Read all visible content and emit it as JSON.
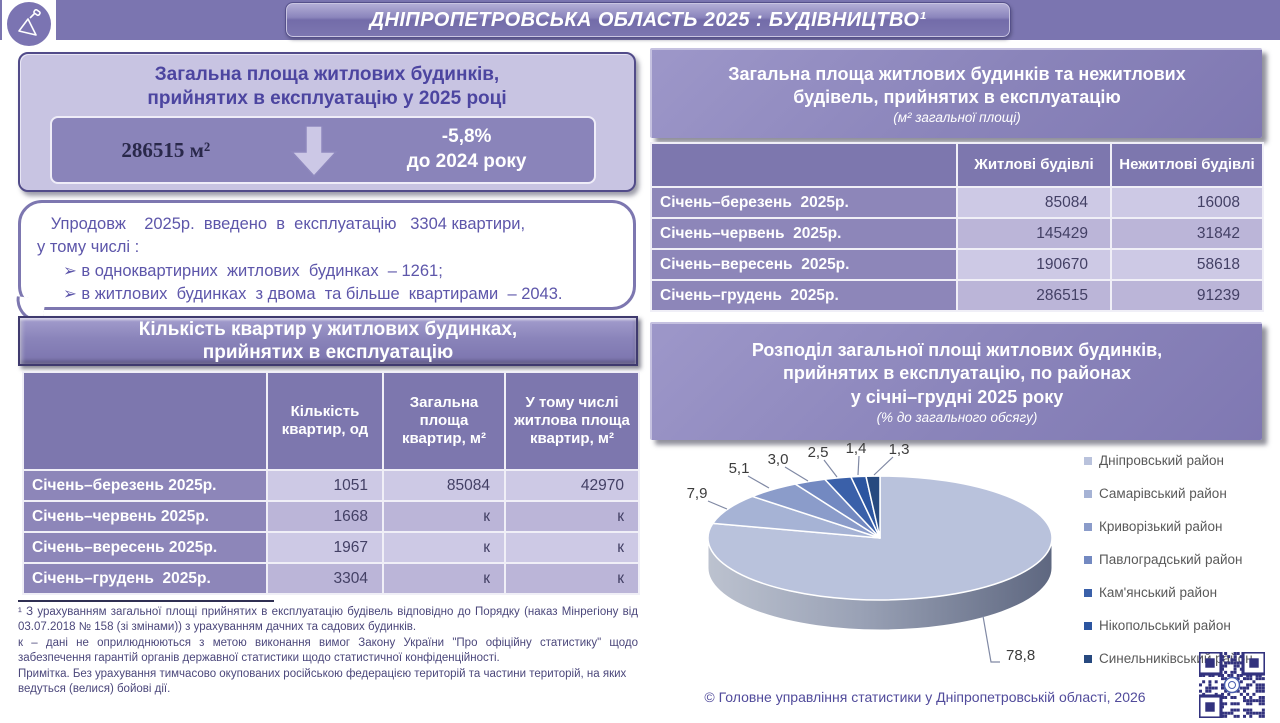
{
  "header": {
    "title": "ДНІПРОПЕТРОВСЬКА ОБЛАСТЬ 2025 : БУДІВНИЦТВО¹",
    "logo_icon": "trowel-icon"
  },
  "left": {
    "summary_box": {
      "title_line1": "Загальна площа житлових будинків,",
      "title_line2": "прийнятих в експлуатацію у 2025 році",
      "value": "286515 м²",
      "change_line1": "-5,8%",
      "change_line2": "до 2024 року"
    },
    "note_box": {
      "line1": "   Упродовж    2025р.  введено  в  експлуатацію   3304 квартири,",
      "line2": "у тому числі :",
      "bullet1": "➢ в одноквартирних  житлових  будинках  – 1261;",
      "bullet2": "➢ в житлових  будинках  з двома  та більше  квартирами  – 2043."
    },
    "apartments_header_line1": "Кількість квартир у житлових будинках,",
    "apartments_header_line2": "прийнятих в експлуатацію",
    "apartments_table": {
      "columns": [
        "",
        "Кількість квартир, од",
        "Загальна площа квартир, м²",
        "У тому  числі житлова площа квартир, м²"
      ],
      "rows": [
        {
          "label": "Січень–березень 2025р.",
          "values": [
            "1051",
            "85084",
            "42970"
          ]
        },
        {
          "label": "Січень–червень 2025р.",
          "values": [
            "1668",
            "к",
            "к"
          ]
        },
        {
          "label": "Січень–вересень 2025р.",
          "values": [
            "1967",
            "к",
            "к"
          ]
        },
        {
          "label": "Січень–грудень  2025р.",
          "values": [
            "3304",
            "к",
            "к"
          ]
        }
      ]
    },
    "footnotes": [
      "¹  З  урахуванням  загальної  площі  прийнятих  в  експлуатацію  будівель  відповідно  до  Порядку (наказ Мінрегіону від 03.07.2018 № 158 (зі змінами)) з урахуванням  дачних та садових будинків.",
      "к – дані не оприлюднюються з метою виконання вимог Закону України \"Про офіційну статистику\" щодо забезпечення гарантій органів державної статистики щодо статистичної конфіденційності.",
      "Примітка. Без урахування тимчасово окупованих російською федерацією територій та частини територій, на яких ведуться (велися) бойові дії."
    ]
  },
  "right": {
    "area_header_line1": "Загальна площа житлових будинків та нежитлових",
    "area_header_line2": "будівель, прийнятих в експлуатацію",
    "area_header_subtitle": "(м² загальної площі)",
    "area_table": {
      "columns": [
        "",
        "Житлові будівлі",
        "Нежитлові будівлі"
      ],
      "rows": [
        {
          "label": "Січень–березень  2025р.",
          "values": [
            "85084",
            "16008"
          ]
        },
        {
          "label": "Січень–червень  2025р.",
          "values": [
            "145429",
            "31842"
          ]
        },
        {
          "label": "Січень–вересень  2025р.",
          "values": [
            "190670",
            "58618"
          ]
        },
        {
          "label": "Січень–грудень  2025р.",
          "values": [
            "286515",
            "91239"
          ]
        }
      ]
    },
    "footer": "© Головне управління статистики у Дніпропетровській області, 2026"
  },
  "chart_data": {
    "type": "pie",
    "style": "3d-pie",
    "title": "Розподіл загальної площі житлових будинків, прийнятих в експлуатацію, по районах у січні–грудні 2025 року",
    "title_lines": [
      "Розподіл загальної площі житлових будинків,",
      "прийнятих в експлуатацію, по районах",
      "у січні–грудні 2025 року"
    ],
    "subtitle": "(% до загального обсягу)",
    "categories": [
      "Дніпровський район",
      "Самарівський район",
      "Криворізький район",
      "Павлоградський район",
      "Кам'янський район",
      "Нікопольський район",
      "Синельниківський район"
    ],
    "values": [
      78.8,
      7.9,
      5.1,
      3.0,
      2.5,
      1.4,
      1.3
    ],
    "labels": [
      "78,8",
      "7,9",
      "5,1",
      "3,0",
      "2,5",
      "1,4",
      "1,3"
    ],
    "colors": [
      "#b9c2dc",
      "#a6b3d5",
      "#8b9cca",
      "#7389c1",
      "#3a60a9",
      "#2c55a0",
      "#27497f"
    ],
    "legend_position": "right"
  },
  "colors": {
    "band": "#7b75b0",
    "header_fill": "#8a84ba",
    "table_header": "#7d77ae",
    "row_label": "#8d86b9",
    "row_light": "#cdc9e5",
    "row_dark": "#bbb5d8",
    "accent_text": "#4c45a0",
    "qr": "#32327e"
  }
}
